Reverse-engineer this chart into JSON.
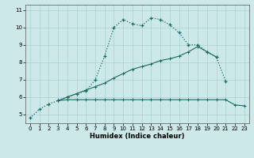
{
  "title": "",
  "xlabel": "Humidex (Indice chaleur)",
  "ylabel": "",
  "bg_color": "#cce8e8",
  "grid_color": "#aad0d0",
  "line_color": "#1a6b65",
  "xlim": [
    -0.5,
    23.5
  ],
  "ylim": [
    4.5,
    11.3
  ],
  "xticks": [
    0,
    1,
    2,
    3,
    4,
    5,
    6,
    7,
    8,
    9,
    10,
    11,
    12,
    13,
    14,
    15,
    16,
    17,
    18,
    19,
    20,
    21,
    22,
    23
  ],
  "yticks": [
    5,
    6,
    7,
    8,
    9,
    10,
    11
  ],
  "line1_x": [
    0,
    1,
    2,
    3,
    4,
    5,
    6,
    7,
    8,
    9,
    10,
    11,
    12,
    13,
    14,
    15,
    16,
    17,
    18,
    19,
    20,
    21
  ],
  "line1_y": [
    4.8,
    5.3,
    5.6,
    5.8,
    6.0,
    6.2,
    6.35,
    7.0,
    8.35,
    10.0,
    10.45,
    10.2,
    10.1,
    10.55,
    10.45,
    10.15,
    9.7,
    9.0,
    9.0,
    8.6,
    8.3,
    6.9
  ],
  "line2_x": [
    3,
    4,
    5,
    6,
    7,
    8,
    9,
    10,
    11,
    12,
    13,
    14,
    15,
    16,
    17,
    18,
    19,
    20,
    21,
    22,
    23
  ],
  "line2_y": [
    5.8,
    5.85,
    5.85,
    5.85,
    5.85,
    5.85,
    5.85,
    5.85,
    5.85,
    5.85,
    5.85,
    5.85,
    5.85,
    5.85,
    5.85,
    5.85,
    5.85,
    5.85,
    5.85,
    5.55,
    5.5
  ],
  "line3_x": [
    3,
    4,
    5,
    6,
    7,
    8,
    9,
    10,
    11,
    12,
    13,
    14,
    15,
    16,
    17,
    18,
    19,
    20
  ],
  "line3_y": [
    5.8,
    6.0,
    6.2,
    6.4,
    6.6,
    6.8,
    7.1,
    7.35,
    7.6,
    7.75,
    7.9,
    8.1,
    8.2,
    8.35,
    8.6,
    8.9,
    8.6,
    8.3
  ]
}
